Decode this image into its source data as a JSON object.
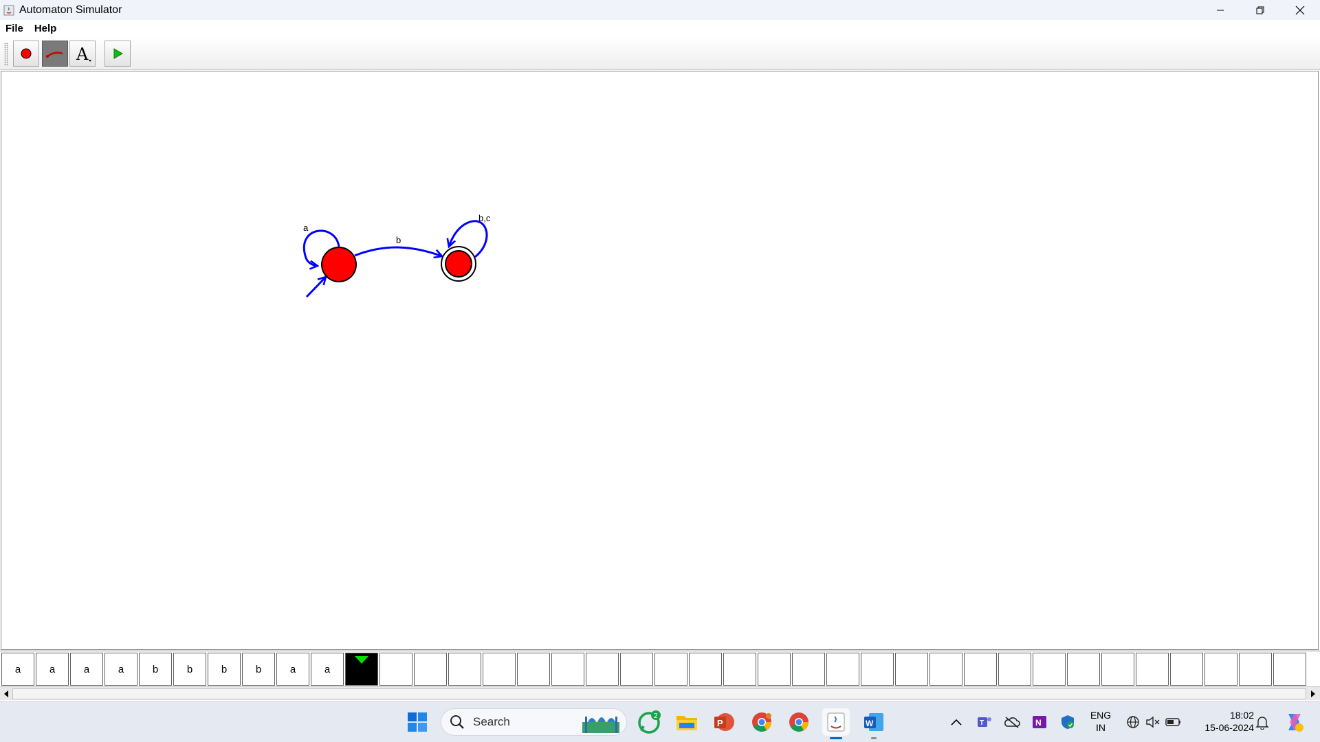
{
  "window": {
    "title": "Automaton Simulator"
  },
  "menu": {
    "items": [
      "File",
      "Help"
    ]
  },
  "toolbar": {
    "tools": [
      {
        "name": "state-tool",
        "icon": "red-circle-icon",
        "pressed": false
      },
      {
        "name": "transition-tool",
        "icon": "transition-line-icon",
        "pressed": true
      },
      {
        "name": "label-tool",
        "icon": "text-a-icon",
        "pressed": false
      },
      {
        "name": "run-button",
        "icon": "play-icon",
        "pressed": false
      }
    ]
  },
  "automaton": {
    "states": [
      {
        "id": "q0",
        "initial": true,
        "accepting": false,
        "color": "#ff0000"
      },
      {
        "id": "q1",
        "initial": false,
        "accepting": true,
        "color": "#ff0000"
      }
    ],
    "transitions": [
      {
        "from": "q0",
        "to": "q0",
        "label": "a"
      },
      {
        "from": "q0",
        "to": "q1",
        "label": "b"
      },
      {
        "from": "q1",
        "to": "q1",
        "label": "b,c"
      }
    ],
    "edge_color": "#0000ff"
  },
  "tape": {
    "symbols": [
      "a",
      "a",
      "a",
      "a",
      "b",
      "b",
      "b",
      "b",
      "a",
      "a"
    ],
    "head_index": 10,
    "total_cells": 38,
    "head_marker_color": "#00dd00"
  },
  "taskbar": {
    "search_label": "Search",
    "whatsapp_badge": "2",
    "language_line1": "ENG",
    "language_line2": "IN",
    "time": "18:02",
    "date": "15-06-2024"
  }
}
